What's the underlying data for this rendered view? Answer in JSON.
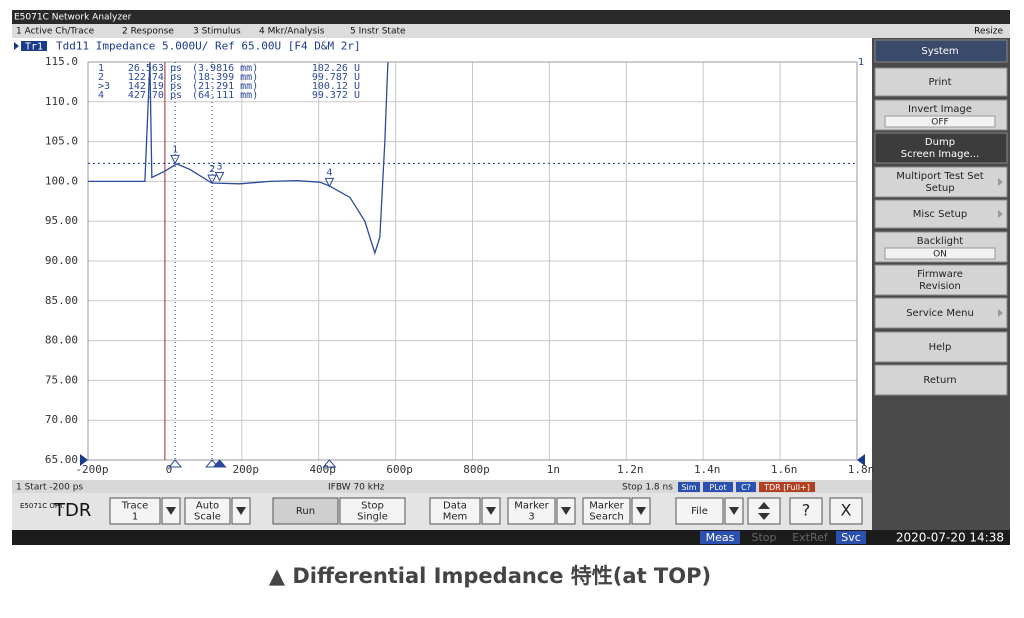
{
  "window": {
    "title": "E5071C Network Analyzer",
    "resize": "Resize"
  },
  "menu": [
    "1 Active Ch/Trace",
    "2 Response",
    "3 Stimulus",
    "4 Mkr/Analysis",
    "5 Instr State"
  ],
  "trace_header": {
    "trace": "Tr1",
    "text": "Tdd11 Impedance 5.000U/ Ref 65.00U [F4 D&M 2r]",
    "channel": "1"
  },
  "chart_data": {
    "type": "line",
    "color": "#2b4a9a",
    "grid": true,
    "x": [
      -200,
      -52,
      -39,
      -34,
      0,
      31,
      65,
      122,
      195,
      273,
      344,
      403,
      429,
      481,
      520,
      546,
      559,
      572,
      580
    ],
    "values": [
      100.0,
      100.0,
      115,
      100.5,
      101.3,
      102.2,
      101.5,
      99.8,
      99.7,
      100.0,
      100.1,
      99.9,
      99.4,
      98.0,
      95.0,
      91.0,
      93.0,
      105.0,
      115
    ],
    "xlim": [
      -200,
      1800
    ],
    "ylim": [
      65,
      115
    ],
    "xticks": [
      {
        "value": -200,
        "label": "-200p"
      },
      0,
      {
        "value": 200,
        "label": "200p"
      },
      {
        "value": 400,
        "label": "400p"
      },
      {
        "value": 600,
        "label": "600p"
      },
      {
        "value": 800,
        "label": "800p"
      },
      {
        "value": 1000,
        "label": "1n"
      },
      {
        "value": 1200,
        "label": "1.2n"
      },
      {
        "value": 1400,
        "label": "1.4n"
      },
      {
        "value": 1600,
        "label": "1.6n"
      },
      {
        "value": 1800,
        "label": "1.8n"
      }
    ],
    "yticks": [
      {
        "value": 115,
        "label": "115.0"
      },
      {
        "value": 110,
        "label": "110.0"
      },
      {
        "value": 105,
        "label": "105.0"
      },
      {
        "value": 100,
        "label": "100.0"
      },
      {
        "value": 95,
        "label": "95.00"
      },
      {
        "value": 90,
        "label": "90.00"
      },
      {
        "value": 85,
        "label": "85.00"
      },
      {
        "value": 80,
        "label": "80.00"
      },
      {
        "value": 75,
        "label": "75.00"
      },
      {
        "value": 70,
        "label": "70.00"
      },
      {
        "value": 65,
        "label": "65.00"
      }
    ],
    "markers": [
      {
        "label": "1",
        "row_label": "1",
        "time": "26.563 ps",
        "distance": "(3.9816 mm)",
        "value_label": "102.26 U",
        "x": 26.563,
        "y": 102.26
      },
      {
        "label": "2",
        "row_label": "2",
        "time": "122.74 ps",
        "distance": "(18.399 mm)",
        "value_label": "99.787 U",
        "x": 122.74,
        "y": 99.787
      },
      {
        "label": "3",
        "row_label": ">3",
        "time": "142.19 ps",
        "distance": "(21.291 mm)",
        "value_label": "100.12 U",
        "x": 142.19,
        "y": 100.12
      },
      {
        "label": "4",
        "row_label": "4",
        "time": "427.70 ps",
        "distance": "(64.111 mm)",
        "value_label": "99.372 U",
        "x": 427.7,
        "y": 99.372
      }
    ]
  },
  "status_line": {
    "start": "1 Start -200 ps",
    "ifbw": "IFBW 70 kHz",
    "stop": "Stop 1.8 ns",
    "flags": [
      "Sim",
      "PLot",
      "C?",
      "TDR [Full+]"
    ]
  },
  "softkeys": [
    {
      "lines": [
        "System"
      ]
    },
    {
      "lines": [
        "Print"
      ]
    },
    {
      "lines": [
        "Invert Image"
      ],
      "state": "OFF"
    },
    {
      "lines": [
        "Dump",
        "Screen Image..."
      ],
      "selected": true
    },
    {
      "lines": [
        "Multiport Test Set",
        "Setup"
      ],
      "submenu": true
    },
    {
      "lines": [
        "Misc Setup"
      ],
      "submenu": true
    },
    {
      "lines": [
        "Backlight"
      ],
      "state": "ON"
    },
    {
      "lines": [
        "Firmware",
        "Revision"
      ]
    },
    {
      "lines": [
        "Service Menu"
      ],
      "submenu": true
    },
    {
      "lines": [
        "Help"
      ]
    },
    {
      "lines": [
        "Return"
      ]
    }
  ],
  "toolbar": {
    "model": "E5071C OPT.",
    "mode": "TDR",
    "buttons": [
      {
        "lines": [
          "Trace",
          "1"
        ],
        "dropdown": true
      },
      {
        "lines": [
          "Auto",
          "Scale"
        ],
        "dropdown": true
      },
      {
        "lines": [
          "Run"
        ],
        "dropdown": false
      },
      {
        "lines": [
          "Stop",
          "Single"
        ],
        "dropdown": false
      },
      {
        "lines": [
          "Data",
          "Mem"
        ],
        "dropdown": true
      },
      {
        "lines": [
          "Marker",
          "3"
        ],
        "dropdown": true
      },
      {
        "lines": [
          "Marker",
          "Search"
        ],
        "dropdown": true
      },
      {
        "lines": [
          "File"
        ],
        "dropdown": true
      },
      {
        "lines": [
          "?"
        ],
        "dropdown": false
      },
      {
        "lines": [
          "X"
        ],
        "dropdown": false
      }
    ]
  },
  "status_bar": {
    "items": [
      "Meas",
      "Stop",
      "ExtRef",
      "Svc"
    ],
    "datetime": "2020-07-20 14:38"
  },
  "caption": "▲ Differential Impedance 特性(at TOP)"
}
